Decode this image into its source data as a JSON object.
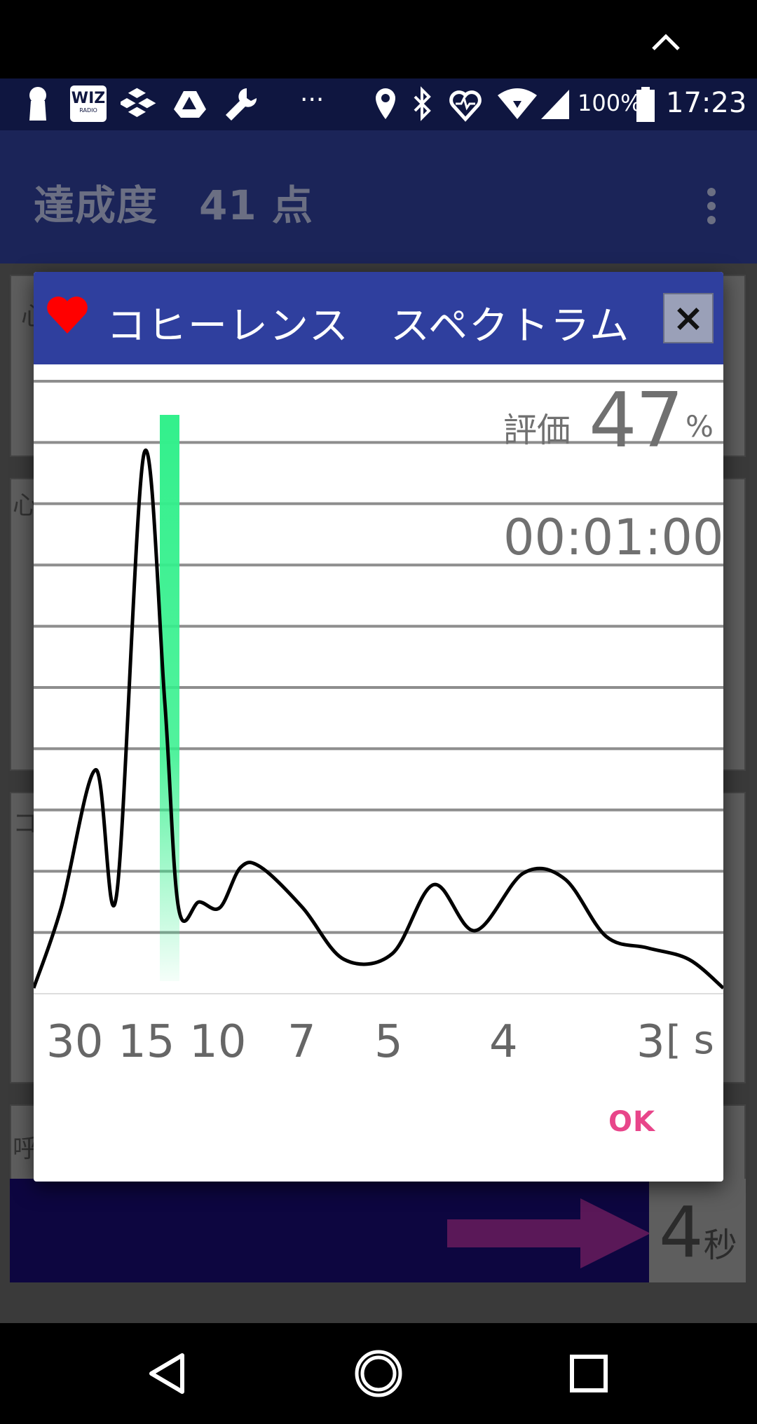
{
  "status_bar": {
    "battery": "100%",
    "time": "17:23",
    "more": "···",
    "app_icon_text": "WIZ",
    "app_icon_subtext": "RADIO"
  },
  "app_bar": {
    "title": "達成度　41 点"
  },
  "background": {
    "labels": [
      "心",
      "心",
      "コ",
      "呼"
    ],
    "seconds_value": "4",
    "seconds_unit": "秒"
  },
  "dialog": {
    "title": "コヒーレンス　スペクトラム",
    "close_label": "×",
    "evaluation_label": "評価",
    "evaluation_value": "47",
    "evaluation_unit": "%",
    "timer": "00:01:00",
    "ok_label": "OK"
  },
  "chart_data": {
    "type": "line",
    "x_tick_labels": [
      "30",
      "15",
      "10",
      "7",
      "5",
      "4",
      "3"
    ],
    "x_unit": "[ s ]",
    "x_scale": "frequency (period in seconds)",
    "highlight_band": "15 s (peak)",
    "grid": "horizontal lines",
    "series": [
      {
        "color": "#000000",
        "x": [
          0.0,
          0.04,
          0.09,
          0.12,
          0.16,
          0.19,
          0.21,
          0.24,
          0.27,
          0.3,
          0.33,
          0.39,
          0.45,
          0.52,
          0.58,
          0.64,
          0.71,
          0.77,
          0.83,
          0.89,
          0.95,
          1.0
        ],
        "y": [
          0.0,
          0.14,
          0.38,
          0.16,
          0.93,
          0.5,
          0.14,
          0.15,
          0.14,
          0.21,
          0.21,
          0.14,
          0.05,
          0.06,
          0.18,
          0.1,
          0.2,
          0.19,
          0.09,
          0.07,
          0.05,
          0.0
        ]
      }
    ],
    "highlight_color": "#33f08c",
    "ylim": [
      0,
      1
    ]
  },
  "nav_bar": {
    "back_icon": "back-triangle-icon",
    "home_icon": "home-circle-icon",
    "recents_icon": "recents-square-icon"
  }
}
